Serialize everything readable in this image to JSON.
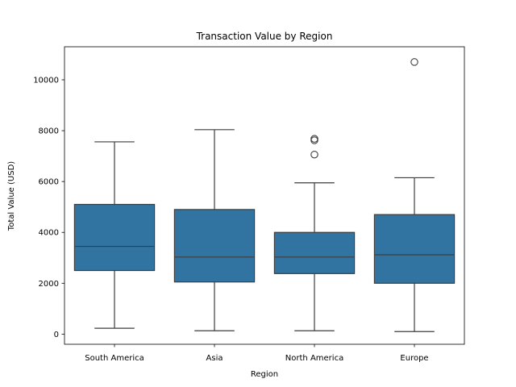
{
  "chart_data": {
    "type": "box",
    "title": "Transaction Value by Region",
    "xlabel": "Region",
    "ylabel": "Total Value (USD)",
    "categories": [
      "South America",
      "Asia",
      "North America",
      "Europe"
    ],
    "ylim": [
      -400,
      11300
    ],
    "yticks": [
      0,
      2000,
      4000,
      6000,
      8000,
      10000
    ],
    "grid": false,
    "box_color": "#3274a1",
    "line_color": "#3d3d3d",
    "boxes": [
      {
        "category": "South America",
        "whisker_low": 230,
        "q1": 2500,
        "median": 3450,
        "q3": 5100,
        "whisker_high": 7560,
        "outliers": []
      },
      {
        "category": "Asia",
        "whisker_low": 130,
        "q1": 2050,
        "median": 3030,
        "q3": 4900,
        "whisker_high": 8040,
        "outliers": []
      },
      {
        "category": "North America",
        "whisker_low": 130,
        "q1": 2380,
        "median": 3030,
        "q3": 4000,
        "whisker_high": 5950,
        "outliers": [
          7060,
          7620,
          7680
        ]
      },
      {
        "category": "Europe",
        "whisker_low": 100,
        "q1": 2000,
        "median": 3120,
        "q3": 4700,
        "whisker_high": 6150,
        "outliers": [
          10700
        ]
      }
    ]
  }
}
